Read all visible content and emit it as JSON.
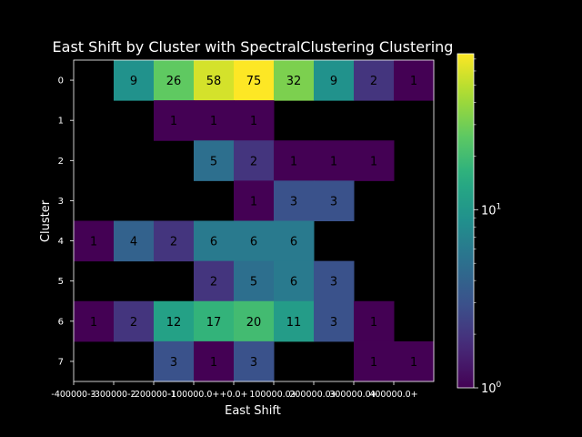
{
  "chart_data": {
    "type": "heatmap",
    "title": "East Shift by Cluster with SpectralClustering Clustering",
    "xlabel": "East Shift",
    "ylabel": "Cluster",
    "x_categories": [
      "-400000-3",
      "-300000-2",
      "-200000-1",
      "-100000.0+",
      "+0.0+",
      "100000.0+",
      "200000.0+",
      "300000.0+",
      "400000.0+"
    ],
    "y_categories": [
      "0",
      "1",
      "2",
      "3",
      "4",
      "5",
      "6",
      "7"
    ],
    "values": [
      [
        null,
        9,
        26,
        58,
        75,
        32,
        9,
        2,
        1
      ],
      [
        null,
        null,
        1,
        1,
        1,
        null,
        null,
        null,
        null
      ],
      [
        null,
        null,
        null,
        5,
        2,
        1,
        1,
        1,
        null
      ],
      [
        null,
        null,
        null,
        null,
        1,
        3,
        3,
        null,
        null
      ],
      [
        1,
        4,
        2,
        6,
        6,
        6,
        null,
        null,
        null
      ],
      [
        null,
        null,
        null,
        2,
        5,
        6,
        3,
        null,
        null
      ],
      [
        1,
        2,
        12,
        17,
        20,
        11,
        3,
        1,
        null
      ],
      [
        null,
        null,
        3,
        1,
        3,
        null,
        null,
        1,
        1
      ]
    ],
    "colorbar": {
      "scale": "log",
      "colormap": "viridis",
      "min": 1,
      "max": 75,
      "tick_labels": [
        "10^0",
        "10^1"
      ]
    },
    "grid": false,
    "background": "#000000"
  }
}
